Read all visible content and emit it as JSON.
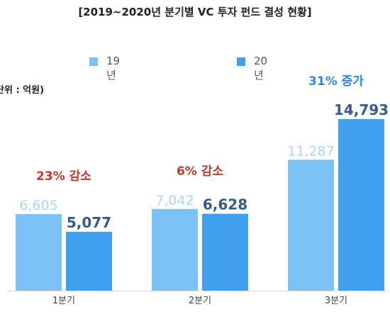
{
  "chart_data": {
    "type": "bar",
    "title": "[2019~2020년 분기별 VC 투자 펀드 결성 현황]",
    "unit_label": "단위 : 억원)",
    "categories": [
      "1분기",
      "2분기",
      "3분기"
    ],
    "series": [
      {
        "name": "19년",
        "color": "#7cc3f5",
        "values": [
          6605,
          7042,
          11287
        ],
        "labels": [
          "6,605",
          "7,042",
          "11,287"
        ]
      },
      {
        "name": "20년",
        "color": "#3f9ff0",
        "values": [
          5077,
          6628,
          14793
        ],
        "labels": [
          "5,077",
          "6,628",
          "14,793"
        ]
      }
    ],
    "annotations": [
      {
        "text": "23% 감소",
        "color": "#c0392b"
      },
      {
        "text": "6% 감소",
        "color": "#c0392b"
      },
      {
        "text": "31% 증가",
        "color": "#2f86e8"
      }
    ],
    "label_colors": [
      "#a8d6f7",
      "#355a8c"
    ],
    "ylim": [
      0,
      16500
    ],
    "legend_position": "top",
    "grid": false
  }
}
